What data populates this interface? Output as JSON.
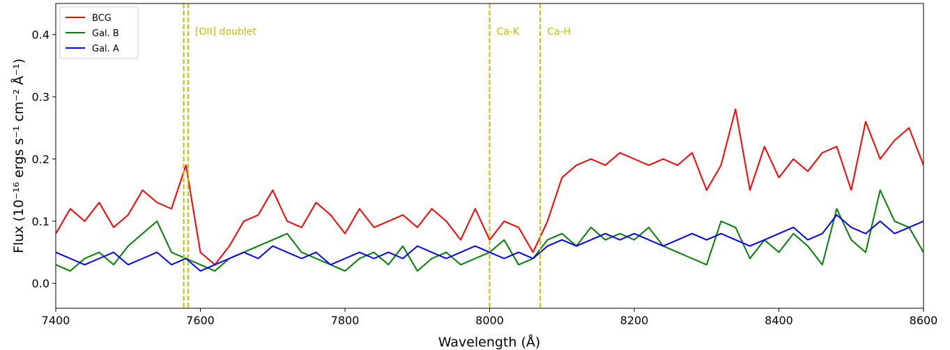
{
  "chart_data": {
    "type": "line",
    "xlabel": "Wavelength (Å)",
    "ylabel": "Flux (10⁻¹⁶ ergs s⁻¹ cm⁻² Å⁻¹)",
    "x": [
      7400,
      7420,
      7440,
      7460,
      7480,
      7500,
      7520,
      7540,
      7560,
      7580,
      7600,
      7620,
      7640,
      7660,
      7680,
      7700,
      7720,
      7740,
      7760,
      7780,
      7800,
      7820,
      7840,
      7860,
      7880,
      7900,
      7920,
      7940,
      7960,
      7980,
      8000,
      8020,
      8040,
      8060,
      8080,
      8100,
      8120,
      8140,
      8160,
      8180,
      8200,
      8220,
      8240,
      8260,
      8280,
      8300,
      8320,
      8340,
      8360,
      8380,
      8400,
      8420,
      8440,
      8460,
      8480,
      8500,
      8520,
      8540,
      8560,
      8580,
      8600
    ],
    "series": [
      {
        "name": "BCG",
        "color": "#ff0000",
        "values": [
          0.08,
          0.12,
          0.1,
          0.13,
          0.09,
          0.11,
          0.15,
          0.13,
          0.12,
          0.19,
          0.05,
          0.03,
          0.06,
          0.1,
          0.11,
          0.15,
          0.1,
          0.09,
          0.13,
          0.11,
          0.08,
          0.12,
          0.09,
          0.1,
          0.11,
          0.09,
          0.12,
          0.1,
          0.07,
          0.12,
          0.07,
          0.1,
          0.09,
          0.05,
          0.1,
          0.17,
          0.19,
          0.2,
          0.19,
          0.21,
          0.2,
          0.19,
          0.2,
          0.19,
          0.21,
          0.15,
          0.19,
          0.28,
          0.15,
          0.22,
          0.17,
          0.2,
          0.18,
          0.21,
          0.22,
          0.15,
          0.26,
          0.2,
          0.23,
          0.25,
          0.19
        ]
      },
      {
        "name": "Gal. B",
        "color": "#008000",
        "values": [
          0.03,
          0.02,
          0.04,
          0.05,
          0.03,
          0.06,
          0.08,
          0.1,
          0.05,
          0.04,
          0.03,
          0.02,
          0.04,
          0.05,
          0.06,
          0.07,
          0.08,
          0.05,
          0.04,
          0.03,
          0.02,
          0.04,
          0.05,
          0.03,
          0.06,
          0.02,
          0.04,
          0.05,
          0.03,
          0.04,
          0.05,
          0.07,
          0.03,
          0.04,
          0.07,
          0.08,
          0.06,
          0.09,
          0.07,
          0.08,
          0.07,
          0.09,
          0.06,
          0.05,
          0.04,
          0.03,
          0.1,
          0.09,
          0.04,
          0.07,
          0.05,
          0.08,
          0.06,
          0.03,
          0.12,
          0.07,
          0.05,
          0.15,
          0.1,
          0.09,
          0.05
        ]
      },
      {
        "name": "Gal. A",
        "color": "#0000ff",
        "values": [
          0.05,
          0.04,
          0.03,
          0.04,
          0.05,
          0.03,
          0.04,
          0.05,
          0.03,
          0.04,
          0.02,
          0.03,
          0.04,
          0.05,
          0.04,
          0.06,
          0.05,
          0.04,
          0.05,
          0.03,
          0.04,
          0.05,
          0.04,
          0.05,
          0.04,
          0.06,
          0.05,
          0.04,
          0.05,
          0.06,
          0.05,
          0.04,
          0.05,
          0.04,
          0.06,
          0.07,
          0.06,
          0.07,
          0.08,
          0.07,
          0.08,
          0.07,
          0.06,
          0.07,
          0.08,
          0.07,
          0.08,
          0.07,
          0.06,
          0.07,
          0.08,
          0.09,
          0.07,
          0.08,
          0.11,
          0.09,
          0.08,
          0.1,
          0.08,
          0.09,
          0.1
        ]
      }
    ],
    "xlim": [
      7400,
      8600
    ],
    "xticks": [
      7400,
      7600,
      7800,
      8000,
      8200,
      8400,
      8600
    ],
    "ylim": [
      -0.04,
      0.45
    ],
    "yticks": [
      {
        "value": 0,
        "label": "0.0"
      },
      0.1,
      0.2,
      0.3,
      0.4
    ],
    "legend": "upper left",
    "annotations": [
      {
        "text": "[OII] doublet",
        "x": [
          7577,
          7583
        ],
        "color": "#bfbf00"
      },
      {
        "text": "Ca-K",
        "x": [
          8000
        ],
        "color": "#bfbf00"
      },
      {
        "text": "Ca-H",
        "x": [
          8070
        ],
        "color": "#bfbf00"
      }
    ]
  }
}
